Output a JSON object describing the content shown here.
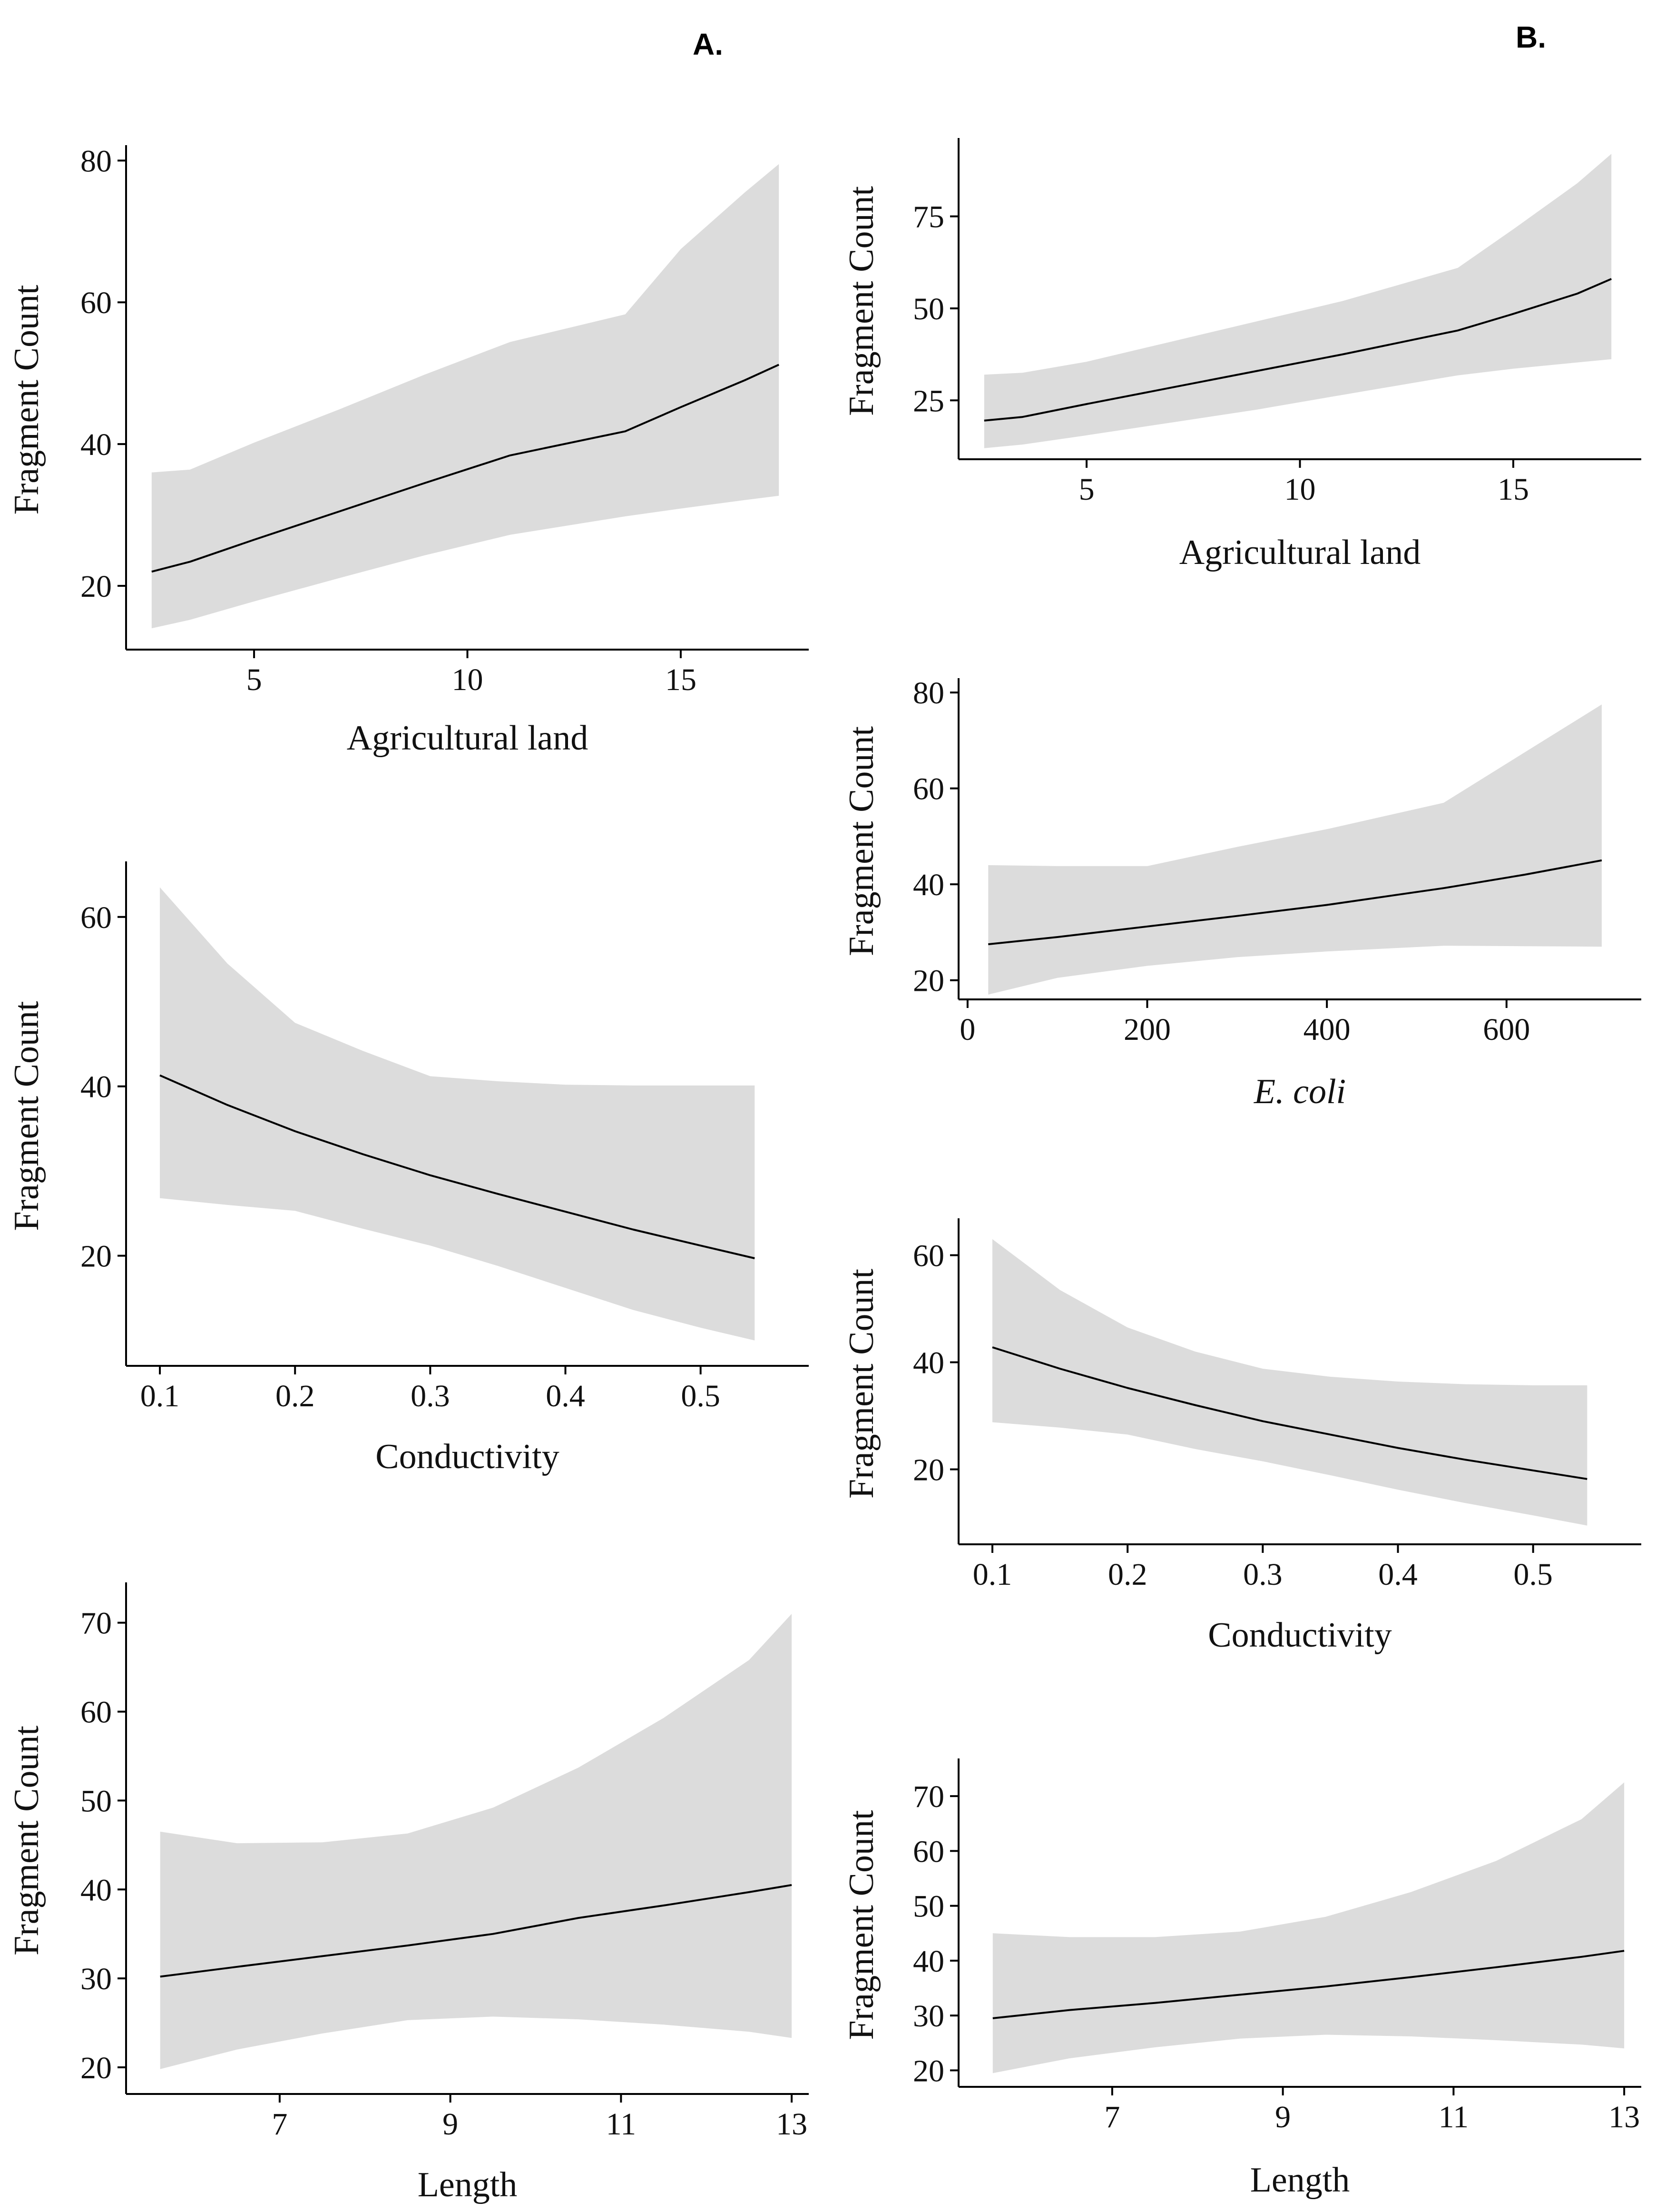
{
  "panel_labels": {
    "a": "A.",
    "b": "B."
  },
  "colors": {
    "band": "#dcdcdc",
    "line": "#000000",
    "axis": "#000000",
    "text": "#111111"
  },
  "chart_data": [
    {
      "id": "A1",
      "column": "A",
      "row": 1,
      "type": "line",
      "title": "",
      "xlabel": "Agricultural land",
      "xlabel_italic": false,
      "ylabel": "Fragment Count",
      "xlim": [
        2.0,
        18.0
      ],
      "ylim": [
        11.0,
        81.5
      ],
      "xticks": [
        5,
        10,
        15
      ],
      "xtick_labels": [
        "5",
        "10",
        "15"
      ],
      "yticks": [
        20,
        40,
        60,
        80
      ],
      "ytick_labels": [
        "20",
        "40",
        "60",
        "80"
      ],
      "x": [
        2.6,
        3.5,
        5.0,
        7.0,
        9.0,
        11.0,
        13.7,
        15.0,
        16.5,
        17.3
      ],
      "fit": [
        22.0,
        23.4,
        26.5,
        30.5,
        34.5,
        38.4,
        41.8,
        45.2,
        49.0,
        51.2
      ],
      "lower": [
        14.0,
        15.2,
        17.8,
        21.1,
        24.3,
        27.2,
        29.8,
        30.9,
        32.1,
        32.7
      ],
      "upper": [
        36.0,
        36.4,
        40.2,
        44.9,
        49.8,
        54.4,
        58.3,
        67.5,
        75.5,
        79.5
      ]
    },
    {
      "id": "A2",
      "column": "A",
      "row": 2,
      "type": "line",
      "title": "",
      "xlabel": "Conductivity",
      "xlabel_italic": false,
      "ylabel": "Fragment Count",
      "xlim": [
        0.075,
        0.58
      ],
      "ylim": [
        7.0,
        66.0
      ],
      "xticks": [
        0.1,
        0.2,
        0.3,
        0.4,
        0.5
      ],
      "xtick_labels": [
        "0.1",
        "0.2",
        "0.3",
        "0.4",
        "0.5"
      ],
      "yticks": [
        20,
        40,
        60
      ],
      "ytick_labels": [
        "20",
        "40",
        "60"
      ],
      "x": [
        0.1,
        0.15,
        0.2,
        0.25,
        0.3,
        0.35,
        0.4,
        0.45,
        0.5,
        0.54
      ],
      "fit": [
        41.3,
        37.8,
        34.7,
        32.0,
        29.5,
        27.3,
        25.2,
        23.1,
        21.2,
        19.7
      ],
      "lower": [
        26.8,
        26.0,
        25.3,
        23.2,
        21.2,
        18.8,
        16.2,
        13.6,
        11.5,
        10.0
      ],
      "upper": [
        63.5,
        54.5,
        47.5,
        44.2,
        41.2,
        40.6,
        40.2,
        40.1,
        40.1,
        40.1
      ]
    },
    {
      "id": "A3",
      "column": "A",
      "row": 3,
      "type": "line",
      "title": "",
      "xlabel": "Length",
      "xlabel_italic": false,
      "ylabel": "Fragment Count",
      "xlim": [
        5.2,
        13.2
      ],
      "ylim": [
        17.0,
        74.0
      ],
      "xticks": [
        7,
        9,
        11,
        13
      ],
      "xtick_labels": [
        "7",
        "9",
        "11",
        "13"
      ],
      "yticks": [
        20,
        30,
        40,
        50,
        60,
        70
      ],
      "ytick_labels": [
        "20",
        "30",
        "40",
        "50",
        "60",
        "70"
      ],
      "x": [
        5.6,
        6.5,
        7.5,
        8.5,
        9.5,
        10.5,
        11.5,
        12.5,
        13.0
      ],
      "fit": [
        30.2,
        31.3,
        32.5,
        33.7,
        35.0,
        36.8,
        38.2,
        39.7,
        40.5
      ],
      "lower": [
        19.8,
        22.0,
        23.8,
        25.3,
        25.7,
        25.4,
        24.8,
        24.0,
        23.3
      ],
      "upper": [
        46.5,
        45.2,
        45.3,
        46.3,
        49.2,
        53.7,
        59.3,
        65.8,
        71.0
      ]
    },
    {
      "id": "B1",
      "column": "B",
      "row": 1,
      "type": "line",
      "title": "",
      "xlabel": "Agricultural land",
      "xlabel_italic": false,
      "ylabel": "Fragment Count",
      "xlim": [
        2.0,
        18.0
      ],
      "ylim": [
        9.0,
        95.0
      ],
      "xticks": [
        5,
        10,
        15
      ],
      "xtick_labels": [
        "5",
        "10",
        "15"
      ],
      "yticks": [
        25,
        50,
        75
      ],
      "ytick_labels": [
        "25",
        "50",
        "75"
      ],
      "x": [
        2.6,
        3.5,
        5.0,
        7.0,
        9.0,
        11.0,
        13.7,
        15.0,
        16.5,
        17.3
      ],
      "fit": [
        19.5,
        20.5,
        24.0,
        28.5,
        33.0,
        37.5,
        44.0,
        48.5,
        54.0,
        58.0
      ],
      "lower": [
        12.0,
        13.0,
        15.5,
        19.0,
        22.5,
        26.5,
        31.8,
        33.6,
        35.3,
        36.2
      ],
      "upper": [
        32.0,
        32.5,
        35.5,
        41.0,
        46.5,
        52.0,
        61.0,
        71.5,
        84.0,
        92.0
      ]
    },
    {
      "id": "B2",
      "column": "B",
      "row": 2,
      "type": "line",
      "title": "",
      "xlabel": "E. coli",
      "xlabel_italic": true,
      "ylabel": "Fragment Count",
      "xlim": [
        -10.0,
        750.0
      ],
      "ylim": [
        16.0,
        82.0
      ],
      "xticks": [
        0,
        200,
        400,
        600
      ],
      "xtick_labels": [
        "0",
        "200",
        "400",
        "600"
      ],
      "yticks": [
        20,
        40,
        60,
        80
      ],
      "ytick_labels": [
        "20",
        "40",
        "60",
        "80"
      ],
      "x": [
        23,
        100,
        200,
        300,
        400,
        530,
        620,
        706
      ],
      "fit": [
        27.5,
        29.0,
        31.2,
        33.4,
        35.7,
        39.2,
        42.0,
        45.0
      ],
      "lower": [
        17.0,
        20.5,
        23.0,
        24.8,
        26.0,
        27.2,
        27.1,
        27.0
      ],
      "upper": [
        44.0,
        43.8,
        43.8,
        47.8,
        51.5,
        57.0,
        67.5,
        77.5
      ]
    },
    {
      "id": "B3",
      "column": "B",
      "row": 3,
      "type": "line",
      "title": "",
      "xlabel": "Conductivity",
      "xlabel_italic": false,
      "ylabel": "Fragment Count",
      "xlim": [
        0.075,
        0.58
      ],
      "ylim": [
        6.0,
        66.0
      ],
      "xticks": [
        0.1,
        0.2,
        0.3,
        0.4,
        0.5
      ],
      "xtick_labels": [
        "0.1",
        "0.2",
        "0.3",
        "0.4",
        "0.5"
      ],
      "yticks": [
        20,
        40,
        60
      ],
      "ytick_labels": [
        "20",
        "40",
        "60"
      ],
      "x": [
        0.1,
        0.15,
        0.2,
        0.25,
        0.3,
        0.35,
        0.4,
        0.45,
        0.5,
        0.54
      ],
      "fit": [
        42.8,
        38.8,
        35.2,
        32.0,
        29.0,
        26.5,
        24.0,
        21.8,
        19.8,
        18.2
      ],
      "lower": [
        28.8,
        27.8,
        26.5,
        23.8,
        21.5,
        18.9,
        16.2,
        13.7,
        11.4,
        9.5
      ],
      "upper": [
        63.0,
        53.5,
        46.5,
        42.0,
        38.8,
        37.3,
        36.4,
        35.9,
        35.7,
        35.7
      ]
    },
    {
      "id": "B4",
      "column": "B",
      "row": 4,
      "type": "line",
      "title": "",
      "xlabel": "Length",
      "xlabel_italic": false,
      "ylabel": "Fragment Count",
      "xlim": [
        5.2,
        13.2
      ],
      "ylim": [
        17.0,
        76.0
      ],
      "xticks": [
        7,
        9,
        11,
        13
      ],
      "xtick_labels": [
        "7",
        "9",
        "11",
        "13"
      ],
      "yticks": [
        20,
        30,
        40,
        50,
        60,
        70
      ],
      "ytick_labels": [
        "20",
        "30",
        "40",
        "50",
        "60",
        "70"
      ],
      "x": [
        5.6,
        6.5,
        7.5,
        8.5,
        9.5,
        10.5,
        11.5,
        12.5,
        13.0
      ],
      "fit": [
        29.5,
        31.0,
        32.3,
        33.8,
        35.3,
        37.0,
        38.8,
        40.7,
        41.8
      ],
      "lower": [
        19.5,
        22.2,
        24.2,
        25.8,
        26.5,
        26.2,
        25.5,
        24.7,
        24.0
      ],
      "upper": [
        45.0,
        44.3,
        44.3,
        45.3,
        48.0,
        52.5,
        58.2,
        65.8,
        72.5
      ]
    }
  ]
}
